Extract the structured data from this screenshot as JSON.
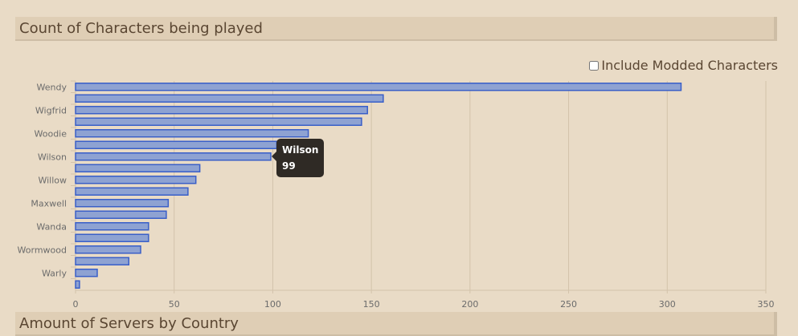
{
  "header": {
    "title": "Count of Characters being played"
  },
  "next_section": {
    "title": "Amount of Servers by Country"
  },
  "options": {
    "include_modded_label": "Include Modded Characters",
    "include_modded_checked": false
  },
  "tooltip": {
    "name": "Wilson",
    "value": "99"
  },
  "colors": {
    "bar_fill": "#8ea2d2",
    "bar_stroke": "#3a5fc8",
    "grid": "#d3c3ab"
  },
  "chart_data": {
    "type": "bar",
    "orientation": "horizontal",
    "title": "Count of Characters being played",
    "categories": [
      "Wendy",
      "",
      "Wigfrid",
      "",
      "Woodie",
      "",
      "Wilson",
      "",
      "Willow",
      "",
      "Maxwell",
      "",
      "Wanda",
      "",
      "Wormwood",
      "",
      "Warly",
      ""
    ],
    "values": [
      307,
      156,
      148,
      145,
      118,
      102,
      99,
      63,
      61,
      57,
      47,
      46,
      37,
      37,
      33,
      27,
      11,
      2
    ],
    "xlim": [
      0,
      350
    ],
    "xticks": [
      0,
      50,
      100,
      150,
      200,
      250,
      300,
      350
    ],
    "grid": true,
    "legend": "none"
  }
}
